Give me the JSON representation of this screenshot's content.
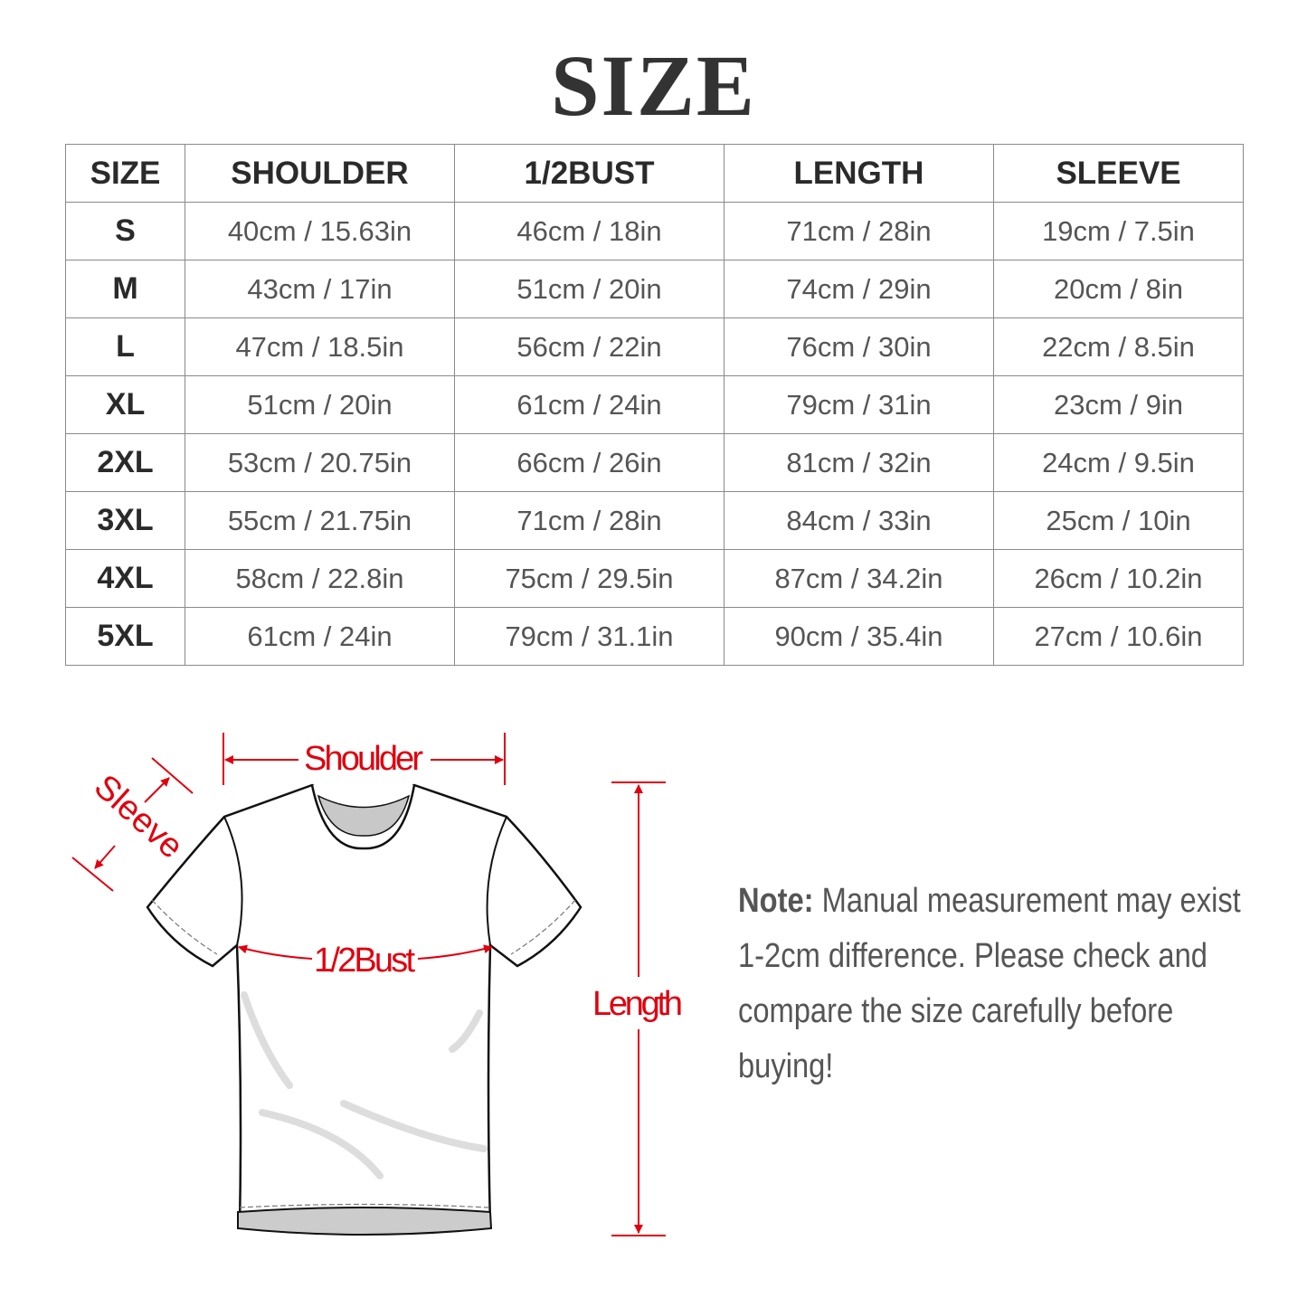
{
  "title": "SIZE",
  "table": {
    "headers": [
      "SIZE",
      "SHOULDER",
      "1/2BUST",
      "LENGTH",
      "SLEEVE"
    ],
    "rows": [
      [
        "S",
        "40cm / 15.63in",
        "46cm / 18in",
        "71cm / 28in",
        "19cm / 7.5in"
      ],
      [
        "M",
        "43cm / 17in",
        "51cm / 20in",
        "74cm / 29in",
        "20cm / 8in"
      ],
      [
        "L",
        "47cm / 18.5in",
        "56cm / 22in",
        "76cm / 30in",
        "22cm / 8.5in"
      ],
      [
        "XL",
        "51cm / 20in",
        "61cm / 24in",
        "79cm / 31in",
        "23cm / 9in"
      ],
      [
        "2XL",
        "53cm / 20.75in",
        "66cm / 26in",
        "81cm / 32in",
        "24cm / 9.5in"
      ],
      [
        "3XL",
        "55cm / 21.75in",
        "71cm / 28in",
        "84cm / 33in",
        "25cm / 10in"
      ],
      [
        "4XL",
        "58cm / 22.8in",
        "75cm / 29.5in",
        "87cm / 34.2in",
        "26cm / 10.2in"
      ],
      [
        "5XL",
        "61cm / 24in",
        "79cm / 31.1in",
        "90cm / 35.4in",
        "27cm / 10.6in"
      ]
    ]
  },
  "diagram": {
    "shoulder_label": "Shoulder",
    "sleeve_label": "Sleeve",
    "bust_label": "1/2Bust",
    "length_label": "Length",
    "accent_color": "#e0000f"
  },
  "note": {
    "label": "Note:",
    "text": "Manual measurement may exist 1-2cm difference. Please check and compare the size carefully before buying!"
  }
}
